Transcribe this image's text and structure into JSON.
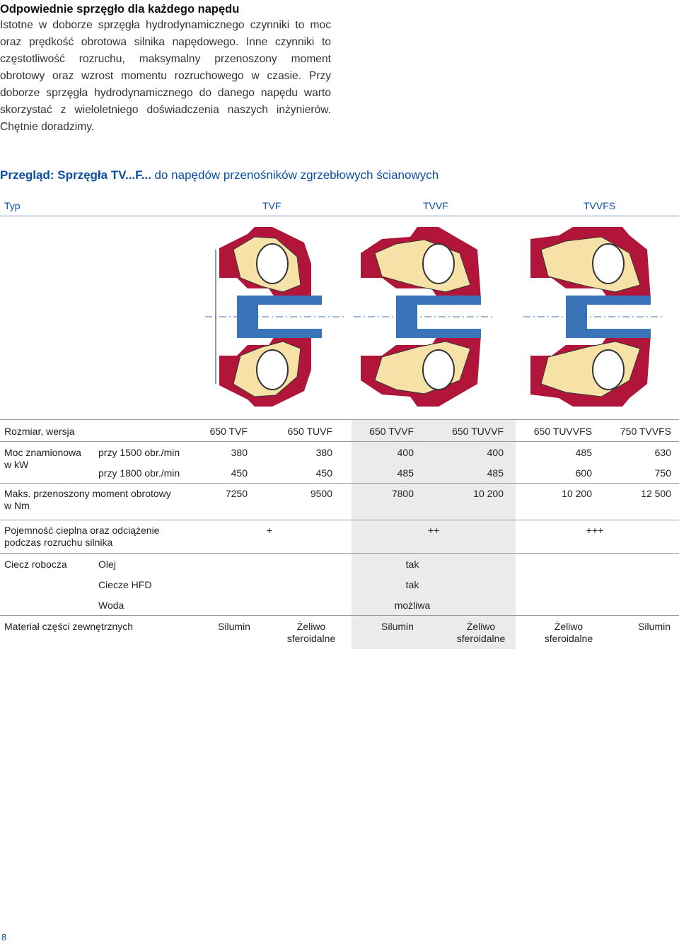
{
  "intro": {
    "title": "Odpowiednie sprzęgło dla każdego napędu",
    "paragraph": "Istotne w doborze sprzęgła hydrodynamicznego czynniki to moc oraz prędkość obrotowa silnika napędowego. Inne czynniki to częstotliwość rozruchu, maksymalny przenoszony moment obrotowy oraz wzrost momentu rozruchowego w czasie. Przy doborze sprzęgła hydrodynamicznego do danego napędu warto skorzystać z wieloletniego doświadczenia naszych inżynierów. Chętnie doradzimy."
  },
  "section": {
    "title_bold": "Przegląd: Sprzęgła TV...F...",
    "title_rest": " do napędów przenośników zgrzebłowych ścianowych"
  },
  "type_row": {
    "label": "Typ",
    "types": [
      "TVF",
      "TVVF",
      "TVVFS"
    ]
  },
  "table": {
    "size": {
      "label": "Rozmiar, wersja",
      "values": [
        "650 TVF",
        "650 TUVF",
        "650 TVVF",
        "650 TUVVF",
        "650 TUVVFS",
        "750 TVVFS"
      ]
    },
    "power": {
      "label": "Moc znamionowa w kW",
      "rows": [
        {
          "label": "przy 1500 obr./min",
          "values": [
            "380",
            "380",
            "400",
            "400",
            "485",
            "630"
          ]
        },
        {
          "label": "przy 1800 obr./min",
          "values": [
            "450",
            "450",
            "485",
            "485",
            "600",
            "750"
          ]
        }
      ]
    },
    "torque": {
      "label": "Maks. przenoszony moment obrotowy w Nm",
      "values": [
        "7250",
        "9500",
        "7800",
        "10 200",
        "10 200",
        "12 500"
      ]
    },
    "thermal": {
      "label": "Pojemność cieplna oraz odciążenie podczas rozruchu silnika",
      "values": [
        "+",
        "++",
        "+++"
      ]
    },
    "fluid": {
      "label": "Ciecz robocza",
      "rows": [
        {
          "label": "Olej",
          "value": "tak"
        },
        {
          "label": "Ciecze HFD",
          "value": "tak"
        },
        {
          "label": "Woda",
          "value": "możliwa"
        }
      ]
    },
    "material": {
      "label": "Materiał części zewnętrznych",
      "values": [
        "Silumin",
        "Żeliwo sferoidalne",
        "Silumin",
        "Żeliwo sferoidalne",
        "Żeliwo sferoidalne",
        "Silumin"
      ]
    }
  },
  "page_number": "8",
  "colors": {
    "accent": "#0b4ea2",
    "casing": "#b1163a",
    "fluid": "#f6e2a6",
    "shaft": "#3b73b9"
  }
}
